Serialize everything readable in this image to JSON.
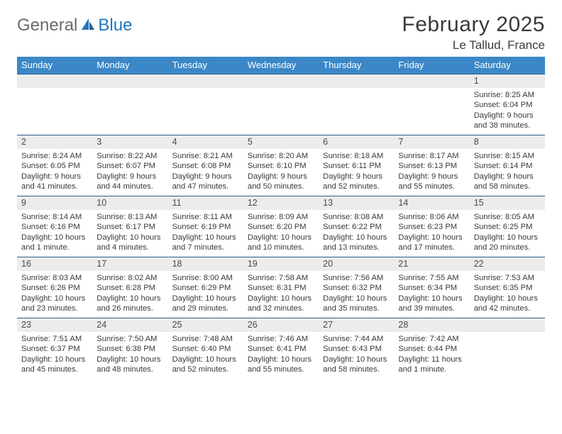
{
  "logo": {
    "part1": "General",
    "part2": "Blue"
  },
  "header": {
    "month_title": "February 2025",
    "location": "Le Tallud, France"
  },
  "dow": [
    "Sunday",
    "Monday",
    "Tuesday",
    "Wednesday",
    "Thursday",
    "Friday",
    "Saturday"
  ],
  "colors": {
    "header_bar": "#3b87c8",
    "daynum_bg": "#ececec",
    "rule": "#2b5f8a",
    "logo_gray": "#6a6a6a",
    "logo_blue": "#2176bd",
    "text": "#3a3a3a"
  },
  "weeks": [
    [
      {
        "n": "",
        "sr": "",
        "ss": "",
        "dl": ""
      },
      {
        "n": "",
        "sr": "",
        "ss": "",
        "dl": ""
      },
      {
        "n": "",
        "sr": "",
        "ss": "",
        "dl": ""
      },
      {
        "n": "",
        "sr": "",
        "ss": "",
        "dl": ""
      },
      {
        "n": "",
        "sr": "",
        "ss": "",
        "dl": ""
      },
      {
        "n": "",
        "sr": "",
        "ss": "",
        "dl": ""
      },
      {
        "n": "1",
        "sr": "Sunrise: 8:25 AM",
        "ss": "Sunset: 6:04 PM",
        "dl": "Daylight: 9 hours and 38 minutes."
      }
    ],
    [
      {
        "n": "2",
        "sr": "Sunrise: 8:24 AM",
        "ss": "Sunset: 6:05 PM",
        "dl": "Daylight: 9 hours and 41 minutes."
      },
      {
        "n": "3",
        "sr": "Sunrise: 8:22 AM",
        "ss": "Sunset: 6:07 PM",
        "dl": "Daylight: 9 hours and 44 minutes."
      },
      {
        "n": "4",
        "sr": "Sunrise: 8:21 AM",
        "ss": "Sunset: 6:08 PM",
        "dl": "Daylight: 9 hours and 47 minutes."
      },
      {
        "n": "5",
        "sr": "Sunrise: 8:20 AM",
        "ss": "Sunset: 6:10 PM",
        "dl": "Daylight: 9 hours and 50 minutes."
      },
      {
        "n": "6",
        "sr": "Sunrise: 8:18 AM",
        "ss": "Sunset: 6:11 PM",
        "dl": "Daylight: 9 hours and 52 minutes."
      },
      {
        "n": "7",
        "sr": "Sunrise: 8:17 AM",
        "ss": "Sunset: 6:13 PM",
        "dl": "Daylight: 9 hours and 55 minutes."
      },
      {
        "n": "8",
        "sr": "Sunrise: 8:15 AM",
        "ss": "Sunset: 6:14 PM",
        "dl": "Daylight: 9 hours and 58 minutes."
      }
    ],
    [
      {
        "n": "9",
        "sr": "Sunrise: 8:14 AM",
        "ss": "Sunset: 6:16 PM",
        "dl": "Daylight: 10 hours and 1 minute."
      },
      {
        "n": "10",
        "sr": "Sunrise: 8:13 AM",
        "ss": "Sunset: 6:17 PM",
        "dl": "Daylight: 10 hours and 4 minutes."
      },
      {
        "n": "11",
        "sr": "Sunrise: 8:11 AM",
        "ss": "Sunset: 6:19 PM",
        "dl": "Daylight: 10 hours and 7 minutes."
      },
      {
        "n": "12",
        "sr": "Sunrise: 8:09 AM",
        "ss": "Sunset: 6:20 PM",
        "dl": "Daylight: 10 hours and 10 minutes."
      },
      {
        "n": "13",
        "sr": "Sunrise: 8:08 AM",
        "ss": "Sunset: 6:22 PM",
        "dl": "Daylight: 10 hours and 13 minutes."
      },
      {
        "n": "14",
        "sr": "Sunrise: 8:06 AM",
        "ss": "Sunset: 6:23 PM",
        "dl": "Daylight: 10 hours and 17 minutes."
      },
      {
        "n": "15",
        "sr": "Sunrise: 8:05 AM",
        "ss": "Sunset: 6:25 PM",
        "dl": "Daylight: 10 hours and 20 minutes."
      }
    ],
    [
      {
        "n": "16",
        "sr": "Sunrise: 8:03 AM",
        "ss": "Sunset: 6:26 PM",
        "dl": "Daylight: 10 hours and 23 minutes."
      },
      {
        "n": "17",
        "sr": "Sunrise: 8:02 AM",
        "ss": "Sunset: 6:28 PM",
        "dl": "Daylight: 10 hours and 26 minutes."
      },
      {
        "n": "18",
        "sr": "Sunrise: 8:00 AM",
        "ss": "Sunset: 6:29 PM",
        "dl": "Daylight: 10 hours and 29 minutes."
      },
      {
        "n": "19",
        "sr": "Sunrise: 7:58 AM",
        "ss": "Sunset: 6:31 PM",
        "dl": "Daylight: 10 hours and 32 minutes."
      },
      {
        "n": "20",
        "sr": "Sunrise: 7:56 AM",
        "ss": "Sunset: 6:32 PM",
        "dl": "Daylight: 10 hours and 35 minutes."
      },
      {
        "n": "21",
        "sr": "Sunrise: 7:55 AM",
        "ss": "Sunset: 6:34 PM",
        "dl": "Daylight: 10 hours and 39 minutes."
      },
      {
        "n": "22",
        "sr": "Sunrise: 7:53 AM",
        "ss": "Sunset: 6:35 PM",
        "dl": "Daylight: 10 hours and 42 minutes."
      }
    ],
    [
      {
        "n": "23",
        "sr": "Sunrise: 7:51 AM",
        "ss": "Sunset: 6:37 PM",
        "dl": "Daylight: 10 hours and 45 minutes."
      },
      {
        "n": "24",
        "sr": "Sunrise: 7:50 AM",
        "ss": "Sunset: 6:38 PM",
        "dl": "Daylight: 10 hours and 48 minutes."
      },
      {
        "n": "25",
        "sr": "Sunrise: 7:48 AM",
        "ss": "Sunset: 6:40 PM",
        "dl": "Daylight: 10 hours and 52 minutes."
      },
      {
        "n": "26",
        "sr": "Sunrise: 7:46 AM",
        "ss": "Sunset: 6:41 PM",
        "dl": "Daylight: 10 hours and 55 minutes."
      },
      {
        "n": "27",
        "sr": "Sunrise: 7:44 AM",
        "ss": "Sunset: 6:43 PM",
        "dl": "Daylight: 10 hours and 58 minutes."
      },
      {
        "n": "28",
        "sr": "Sunrise: 7:42 AM",
        "ss": "Sunset: 6:44 PM",
        "dl": "Daylight: 11 hours and 1 minute."
      },
      {
        "n": "",
        "sr": "",
        "ss": "",
        "dl": ""
      }
    ]
  ]
}
